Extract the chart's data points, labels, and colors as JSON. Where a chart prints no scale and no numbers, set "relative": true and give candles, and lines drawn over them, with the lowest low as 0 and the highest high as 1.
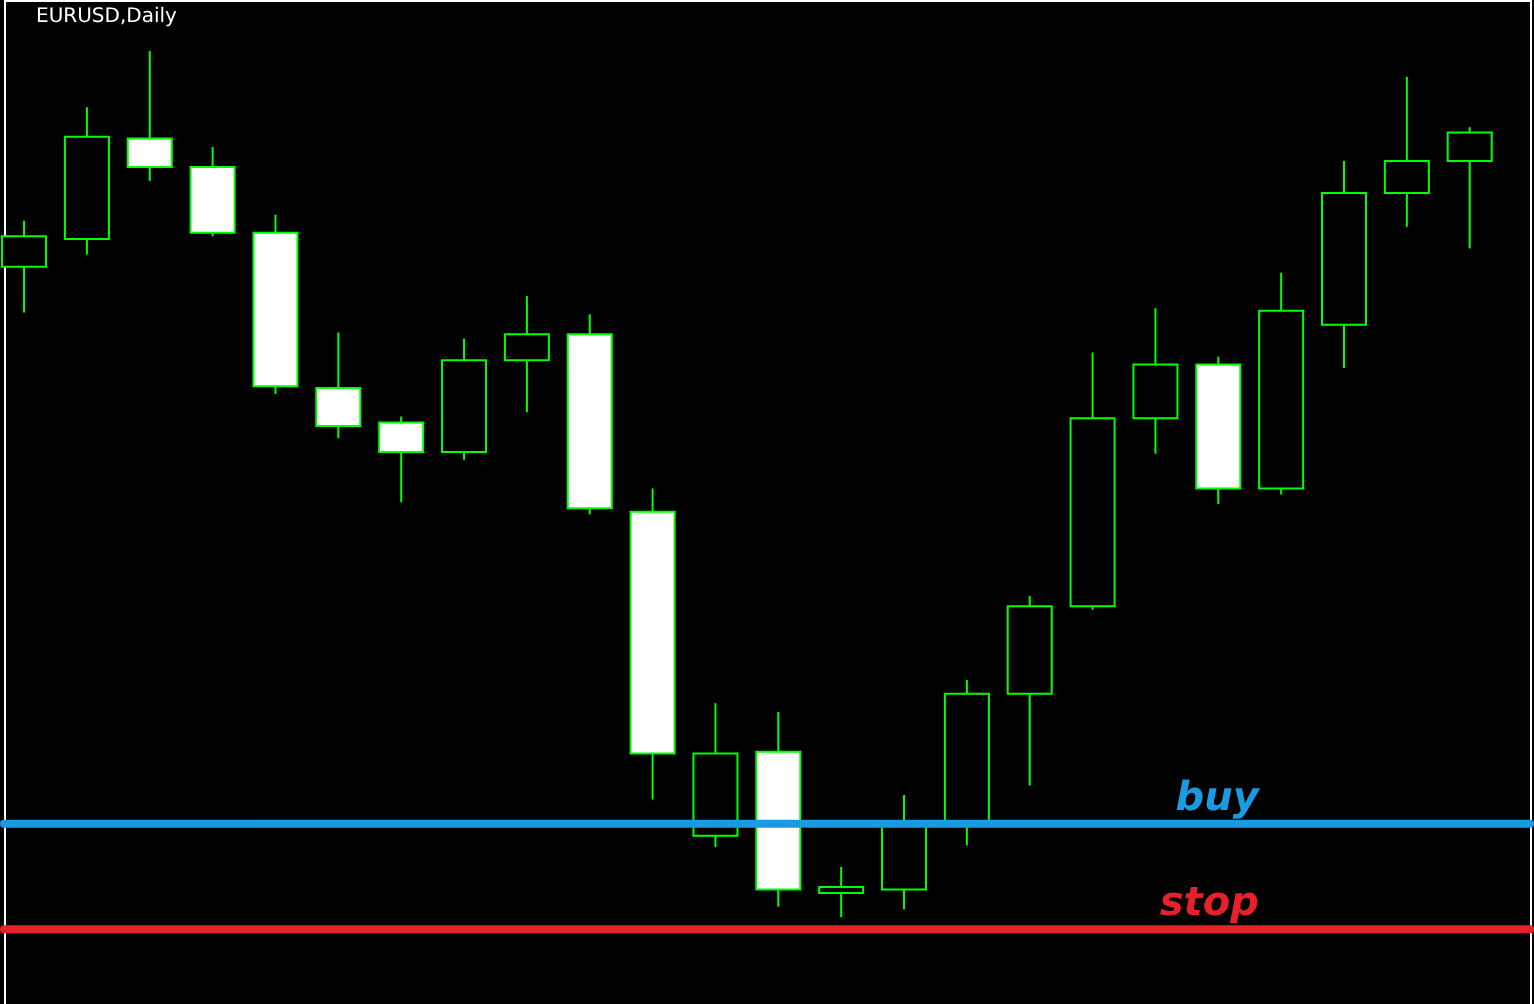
{
  "chart_data": {
    "type": "candlestick",
    "title": "EURUSD,Daily",
    "relative": true,
    "categories": [
      null,
      null,
      null,
      null,
      null,
      null,
      null,
      null,
      null,
      null,
      null,
      null,
      null,
      null,
      null,
      null,
      null,
      null,
      null,
      null,
      null,
      null,
      null,
      null
    ],
    "color": "#00ff00",
    "colors": [
      "#000000",
      "#000000",
      "#ffffff",
      "#ffffff",
      "#ffffff",
      "#ffffff",
      "#ffffff",
      "#000000",
      "#000000",
      "#ffffff",
      "#ffffff",
      "#000000",
      "#ffffff",
      "#000000",
      "#000000",
      "#000000",
      "#000000",
      "#000000",
      "#000000",
      "#ffffff",
      "#000000",
      "#000000",
      "#000000",
      "#000000"
    ],
    "ohlc": [
      [
        0.751,
        0.804,
        0.698,
        0.786
      ],
      [
        0.783,
        0.935,
        0.765,
        0.901
      ],
      [
        0.899,
        1.0,
        0.85,
        0.866
      ],
      [
        0.866,
        0.889,
        0.786,
        0.79
      ],
      [
        0.79,
        0.811,
        0.604,
        0.613
      ],
      [
        0.611,
        0.675,
        0.553,
        0.567
      ],
      [
        0.571,
        0.578,
        0.479,
        0.537
      ],
      [
        0.537,
        0.668,
        0.528,
        0.643
      ],
      [
        0.643,
        0.717,
        0.583,
        0.673
      ],
      [
        0.673,
        0.696,
        0.465,
        0.472
      ],
      [
        0.468,
        0.495,
        0.136,
        0.189
      ],
      [
        0.094,
        0.247,
        0.081,
        0.189
      ],
      [
        0.191,
        0.237,
        0.012,
        0.032
      ],
      [
        0.028,
        0.058,
        0.0,
        0.035
      ],
      [
        0.032,
        0.141,
        0.009,
        0.108
      ],
      [
        0.108,
        0.274,
        0.083,
        0.258
      ],
      [
        0.258,
        0.371,
        0.152,
        0.359
      ],
      [
        0.359,
        0.652,
        0.355,
        0.576
      ],
      [
        0.576,
        0.703,
        0.535,
        0.638
      ],
      [
        0.638,
        0.647,
        0.477,
        0.495
      ],
      [
        0.495,
        0.744,
        0.488,
        0.7
      ],
      [
        0.684,
        0.873,
        0.634,
        0.836
      ],
      [
        0.836,
        0.97,
        0.797,
        0.873
      ],
      [
        0.873,
        0.912,
        0.772,
        0.906
      ]
    ],
    "ref_lines": [
      {
        "axis": "y",
        "value": 0.108,
        "label": "buy",
        "color": "#1a9ae0"
      },
      {
        "axis": "y",
        "value": -0.014,
        "label": "stop",
        "color": "#e8202a"
      }
    ],
    "grid": false
  }
}
